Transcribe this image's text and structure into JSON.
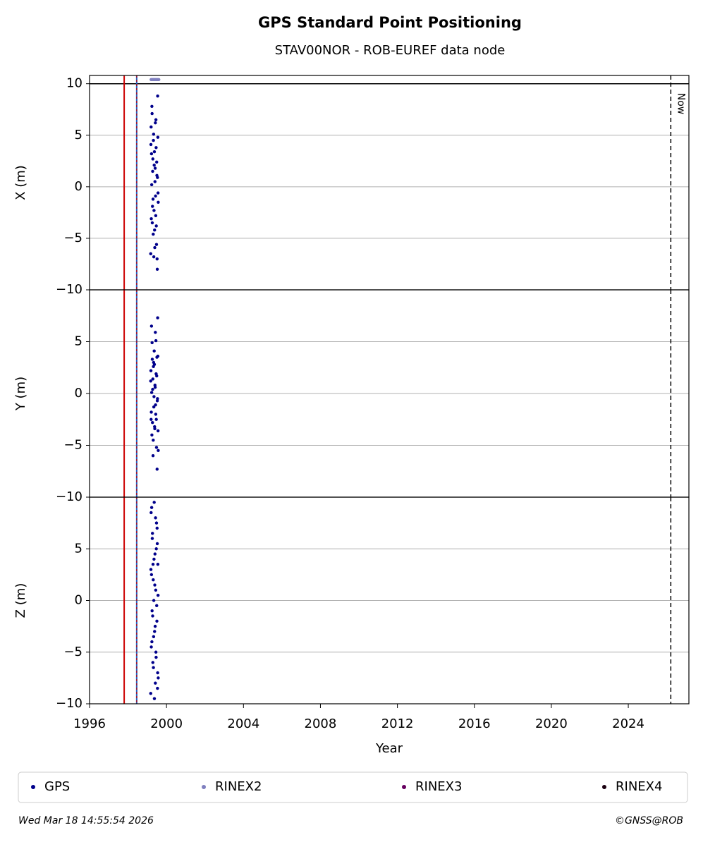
{
  "title": "GPS Standard Point Positioning",
  "subtitle": "STAV00NOR - ROB-EUREF data node",
  "events": [
    {
      "x": 1997.8,
      "color": "#cc0000",
      "dash": false
    },
    {
      "x": 1998.45,
      "color": "#1f5fbf",
      "dash": true
    }
  ],
  "now": {
    "x": 2026.21,
    "label": "Now"
  },
  "chart_data": [
    {
      "type": "scatter",
      "ylabel": "X (m)",
      "xlim": [
        1996,
        2027.15
      ],
      "ylim": [
        -10,
        10.8
      ],
      "yticks": [
        {
          "value": -10,
          "label": "−10"
        },
        {
          "value": -5,
          "label": "−5"
        },
        0,
        5,
        10
      ],
      "grid": true,
      "hline": 10,
      "series": [
        {
          "name": "GPS",
          "color": "#00008b",
          "x": [
            1999.18,
            1999.2,
            1999.22,
            1999.24,
            1999.26,
            1999.28,
            1999.3,
            1999.32,
            1999.34,
            1999.36,
            1999.38,
            1999.4,
            1999.42,
            1999.44,
            1999.46,
            1999.48,
            1999.5,
            1999.52,
            1999.54,
            1999.56,
            1999.19,
            1999.21,
            1999.23,
            1999.25,
            1999.27,
            1999.29,
            1999.31,
            1999.33,
            1999.35,
            1999.37,
            1999.39,
            1999.41,
            1999.43,
            1999.45,
            1999.47,
            1999.49,
            1999.51,
            1999.53,
            1999.55,
            1999.57
          ],
          "values": [
            -6.5,
            5.8,
            3.2,
            7.8,
            -3.5,
            1.5,
            -1.2,
            4.5,
            -6.8,
            2.1,
            -4.2,
            0.5,
            6.2,
            -2.8,
            3.8,
            -5.6,
            1.1,
            -8.0,
            8.8,
            -0.6,
            4.1,
            -3.1,
            0.2,
            7.1,
            -1.9,
            2.7,
            -4.6,
            5.1,
            -2.3,
            3.4,
            -5.9,
            1.8,
            -0.9,
            6.5,
            -3.8,
            2.4,
            -7.0,
            0.9,
            4.8,
            -1.5
          ]
        },
        {
          "name": "RINEX2",
          "color": "#7f7fbf",
          "x": [
            1999.2,
            1999.25,
            1999.3,
            1999.35,
            1999.4,
            1999.45,
            1999.5,
            1999.55,
            1999.6
          ],
          "values": [
            10.4,
            10.4,
            10.4,
            10.4,
            10.4,
            10.4,
            10.4,
            10.4,
            10.4
          ]
        }
      ]
    },
    {
      "type": "scatter",
      "ylabel": "Y (m)",
      "xlim": [
        1996,
        2027.15
      ],
      "ylim": [
        -10,
        10
      ],
      "yticks": [
        {
          "value": -10,
          "label": "−10"
        },
        {
          "value": -5,
          "label": "−5"
        },
        0,
        5
      ],
      "grid": true,
      "series": [
        {
          "name": "GPS",
          "color": "#00008b",
          "x": [
            1999.18,
            1999.2,
            1999.22,
            1999.24,
            1999.26,
            1999.28,
            1999.3,
            1999.32,
            1999.34,
            1999.36,
            1999.38,
            1999.4,
            1999.42,
            1999.44,
            1999.46,
            1999.48,
            1999.5,
            1999.52,
            1999.54,
            1999.56,
            1999.19,
            1999.21,
            1999.23,
            1999.25,
            1999.27,
            1999.29,
            1999.31,
            1999.33,
            1999.35,
            1999.37,
            1999.39,
            1999.41,
            1999.43,
            1999.45,
            1999.47,
            1999.49,
            1999.51,
            1999.53,
            1999.55,
            1999.57
          ],
          "values": [
            1.2,
            -2.5,
            6.5,
            -4.0,
            3.3,
            0.4,
            -6.0,
            2.6,
            -1.3,
            4.1,
            -3.2,
            0.8,
            5.9,
            -2.0,
            1.9,
            -5.2,
            3.5,
            -0.7,
            7.3,
            -3.6,
            2.2,
            -1.8,
            0.1,
            4.9,
            -2.8,
            1.4,
            -4.5,
            3.0,
            -0.3,
            2.8,
            -3.4,
            0.6,
            -1.1,
            5.1,
            -2.5,
            1.7,
            -7.3,
            -0.5,
            3.6,
            -5.5
          ]
        }
      ]
    },
    {
      "type": "scatter",
      "ylabel": "Z (m)",
      "xlabel": "Year",
      "xlim": [
        1996,
        2027.15
      ],
      "ylim": [
        -10,
        10
      ],
      "xticks": [
        1996,
        2000,
        2004,
        2008,
        2012,
        2016,
        2020,
        2024
      ],
      "yticks": [
        {
          "value": -10,
          "label": "−10"
        },
        {
          "value": -5,
          "label": "−5"
        },
        0,
        5
      ],
      "grid": true,
      "series": [
        {
          "name": "GPS",
          "color": "#00008b",
          "x": [
            1999.18,
            1999.2,
            1999.22,
            1999.24,
            1999.26,
            1999.28,
            1999.3,
            1999.32,
            1999.34,
            1999.36,
            1999.38,
            1999.4,
            1999.42,
            1999.44,
            1999.46,
            1999.48,
            1999.5,
            1999.52,
            1999.54,
            1999.56,
            1999.19,
            1999.21,
            1999.23,
            1999.25,
            1999.27,
            1999.29,
            1999.31,
            1999.33,
            1999.35,
            1999.37,
            1999.39,
            1999.41,
            1999.43,
            1999.45,
            1999.47,
            1999.49,
            1999.51,
            1999.53,
            1999.55,
            1999.57
          ],
          "values": [
            -9.0,
            8.5,
            2.5,
            -4.0,
            6.0,
            -1.5,
            3.5,
            -6.5,
            0.0,
            9.5,
            -3.0,
            4.5,
            -8.0,
            1.0,
            -5.5,
            7.5,
            -2.0,
            5.5,
            -7.0,
            0.5,
            3.0,
            -4.5,
            9.0,
            -1.0,
            6.5,
            -6.0,
            2.0,
            -3.5,
            4.0,
            -9.5,
            1.5,
            -2.5,
            8.0,
            -5.0,
            5.0,
            -0.5,
            7.0,
            -8.5,
            3.5,
            -7.5
          ]
        }
      ]
    }
  ],
  "legend": [
    {
      "name": "GPS",
      "color": "#00008b"
    },
    {
      "name": "RINEX2",
      "color": "#7f7fbf"
    },
    {
      "name": "RINEX3",
      "color": "#66005f"
    },
    {
      "name": "RINEX4",
      "color": "#1a0010"
    }
  ],
  "footer": {
    "left": "Wed Mar 18 14:55:54 2026",
    "right": "©GNSS@ROB"
  }
}
